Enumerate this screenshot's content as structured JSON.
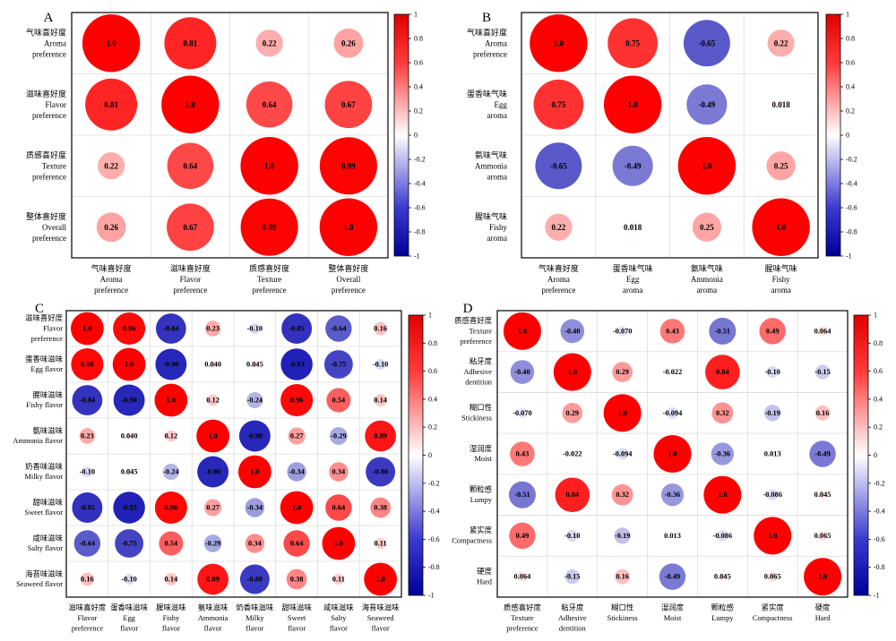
{
  "colors": {
    "positive": "#ff0000",
    "negative": "#0000bb",
    "neutral": "#ffffff",
    "gridline": "#dcdcdc",
    "frame": "#000000"
  },
  "chart_data": [
    {
      "type": "heatmap",
      "panel_label": "A",
      "row_labels": [
        [
          "气味喜好度",
          "Aroma",
          "preference"
        ],
        [
          "滋味喜好度",
          "Flavor",
          "preference"
        ],
        [
          "质感喜好度",
          "Texture",
          "preference"
        ],
        [
          "整体喜好度",
          "Overall",
          "preference"
        ]
      ],
      "col_labels": [
        [
          "气味喜好度",
          "Aroma",
          "preference"
        ],
        [
          "滋味喜好度",
          "Flavor",
          "preference"
        ],
        [
          "质感喜好度",
          "Texture",
          "preference"
        ],
        [
          "整体喜好度",
          "Overall",
          "preference"
        ]
      ],
      "values": [
        [
          1.0,
          0.81,
          0.22,
          0.26
        ],
        [
          0.81,
          1.0,
          0.64,
          0.67
        ],
        [
          0.22,
          0.64,
          1.0,
          0.99
        ],
        [
          0.26,
          0.67,
          0.99,
          1.0
        ]
      ],
      "value_labels": [
        [
          "1.0",
          "0.81",
          "0.22",
          "0.26"
        ],
        [
          "0.81",
          "1.0",
          "0.64",
          "0.67"
        ],
        [
          "0.22",
          "0.64",
          "1.0",
          "0.99"
        ],
        [
          "0.26",
          "0.67",
          "0.99",
          "1.0"
        ]
      ],
      "colorbar": {
        "range": [
          -1,
          1
        ],
        "ticks": [
          "1",
          "0.8",
          "0.6",
          "0.4",
          "0.2",
          "0",
          "-0.2",
          "-0.4",
          "-0.6",
          "-0.8",
          "-1"
        ]
      }
    },
    {
      "type": "heatmap",
      "panel_label": "B",
      "row_labels": [
        [
          "气味喜好度",
          "Aroma",
          "preference"
        ],
        [
          "蛋香味气味",
          "Egg",
          "aroma"
        ],
        [
          "氨味气味",
          "Ammonia",
          "aroma"
        ],
        [
          "腥味气味",
          "Fishy",
          "aroma"
        ]
      ],
      "col_labels": [
        [
          "气味喜好度",
          "Aroma",
          "preference"
        ],
        [
          "蛋香味气味",
          "Egg",
          "aroma"
        ],
        [
          "氨味气味",
          "Ammonia",
          "aroma"
        ],
        [
          "腥味气味",
          "Fishy",
          "aroma"
        ]
      ],
      "values": [
        [
          1.0,
          0.75,
          -0.65,
          0.22
        ],
        [
          0.75,
          1.0,
          -0.49,
          0.018
        ],
        [
          -0.65,
          -0.49,
          1.0,
          0.25
        ],
        [
          0.22,
          0.018,
          0.25,
          1.0
        ]
      ],
      "value_labels": [
        [
          "1.0",
          "0.75",
          "-0.65",
          "0.22"
        ],
        [
          "0.75",
          "1.0",
          "-0.49",
          "0.018"
        ],
        [
          "-0.65",
          "-0.49",
          "1.0",
          "0.25"
        ],
        [
          "0.22",
          "0.018",
          "0.25",
          "1.0"
        ]
      ],
      "colorbar": {
        "range": [
          -1,
          1
        ],
        "ticks": [
          "1",
          "0.8",
          "0.6",
          "0.4",
          "0.2",
          "0",
          "-0.2",
          "-0.4",
          "-0.6",
          "-0.8",
          "-1"
        ]
      }
    },
    {
      "type": "heatmap",
      "panel_label": "C",
      "row_labels": [
        [
          "滋味喜好度",
          "Flavor",
          "preference"
        ],
        [
          "蛋香味滋味",
          "Egg flavor"
        ],
        [
          "腥味滋味",
          "Fishy flavor"
        ],
        [
          "氨味滋味",
          "Ammonia flavor"
        ],
        [
          "奶香味滋味",
          "Milky flavor"
        ],
        [
          "甜味滋味",
          "Sweet flavor"
        ],
        [
          "咸味滋味",
          "Salty flavor"
        ],
        [
          "海苔味滋味",
          "Seaweed flavor"
        ]
      ],
      "col_labels": [
        [
          "滋味喜好度",
          "Flavor",
          "preference"
        ],
        [
          "蛋香味滋味",
          "Egg",
          "flavor"
        ],
        [
          "腥味滋味",
          "Fishy",
          "flavor"
        ],
        [
          "氨味滋味",
          "Ammonia",
          "flavor"
        ],
        [
          "奶香味滋味",
          "Milky",
          "flavor"
        ],
        [
          "甜味滋味",
          "Sweet",
          "flavor"
        ],
        [
          "咸味滋味",
          "Salty",
          "flavor"
        ],
        [
          "海苔味滋味",
          "Seaweed",
          "flavor"
        ]
      ],
      "values": [
        [
          1.0,
          0.96,
          -0.84,
          0.23,
          -0.1,
          -0.85,
          -0.64,
          0.16
        ],
        [
          0.96,
          1.0,
          -0.9,
          0.04,
          0.045,
          -0.93,
          -0.75,
          -0.1
        ],
        [
          -0.84,
          -0.9,
          1.0,
          0.12,
          -0.24,
          0.96,
          0.54,
          0.14
        ],
        [
          0.23,
          0.04,
          0.12,
          1.0,
          -0.9,
          0.27,
          -0.29,
          0.89
        ],
        [
          -0.1,
          0.045,
          -0.24,
          -0.9,
          1.0,
          -0.34,
          0.34,
          -0.8
        ],
        [
          -0.85,
          -0.93,
          0.96,
          0.27,
          -0.34,
          1.0,
          0.64,
          0.38
        ],
        [
          -0.64,
          -0.75,
          0.54,
          -0.29,
          0.34,
          0.64,
          1.0,
          0.11
        ],
        [
          0.16,
          -0.1,
          0.14,
          0.89,
          -0.8,
          0.38,
          0.11,
          1.0
        ]
      ],
      "value_labels": [
        [
          "1.0",
          "0.96",
          "-0.84",
          "0.23",
          "-0.10",
          "-0.85",
          "-0.64",
          "0.16"
        ],
        [
          "0.96",
          "1.0",
          "-0.90",
          "0.040",
          "0.045",
          "-0.93",
          "-0.75",
          "-0.10"
        ],
        [
          "-0.84",
          "-0.90",
          "1.0",
          "0.12",
          "-0.24",
          "0.96",
          "0.54",
          "0.14"
        ],
        [
          "0.23",
          "0.040",
          "0.12",
          "1.0",
          "-0.90",
          "0.27",
          "-0.29",
          "0.89"
        ],
        [
          "-0.10",
          "0.045",
          "-0.24",
          "-0.90",
          "1.0",
          "-0.34",
          "0.34",
          "-0.80"
        ],
        [
          "-0.85",
          "-0.93",
          "0.96",
          "0.27",
          "-0.34",
          "1.0",
          "0.64",
          "0.38"
        ],
        [
          "-0.64",
          "-0.75",
          "0.54",
          "-0.29",
          "0.34",
          "0.64",
          "1.0",
          "0.11"
        ],
        [
          "0.16",
          "-0.10",
          "0.14",
          "0.89",
          "-0.80",
          "0.38",
          "0.11",
          "1.0"
        ]
      ],
      "colorbar": {
        "range": [
          -1,
          1
        ],
        "ticks": [
          "1",
          "0.8",
          "0.6",
          "0.4",
          "0.2",
          "0",
          "-0.2",
          "-0.4",
          "-0.6",
          "-0.8",
          "-1"
        ]
      }
    },
    {
      "type": "heatmap",
      "panel_label": "D",
      "row_labels": [
        [
          "质感喜好度",
          "Texture",
          "preference"
        ],
        [
          "粘牙度",
          "Adhesive",
          "dentition"
        ],
        [
          "糊口性",
          "Stickiness"
        ],
        [
          "湿润度",
          "Moist"
        ],
        [
          "颗粒感",
          "Lumpy"
        ],
        [
          "紧实度",
          "Compactness"
        ],
        [
          "硬度",
          "Hard"
        ]
      ],
      "col_labels": [
        [
          "质感喜好度",
          "Texture",
          "preference"
        ],
        [
          "粘牙度",
          "Adhesive",
          "dentition"
        ],
        [
          "糊口性",
          "Stickiness"
        ],
        [
          "湿润度",
          "Moist"
        ],
        [
          "颗粒感",
          "Lumpy"
        ],
        [
          "紧实度",
          "Compactness"
        ],
        [
          "硬度",
          "Hard"
        ]
      ],
      "values": [
        [
          1.0,
          -0.4,
          -0.07,
          0.43,
          -0.51,
          0.49,
          0.064
        ],
        [
          -0.4,
          1.0,
          0.29,
          -0.022,
          0.84,
          -0.1,
          -0.15
        ],
        [
          -0.07,
          0.29,
          1.0,
          -0.094,
          0.32,
          -0.19,
          0.16
        ],
        [
          0.43,
          -0.022,
          -0.094,
          1.0,
          -0.36,
          0.013,
          -0.49
        ],
        [
          -0.51,
          0.84,
          0.32,
          -0.36,
          1.0,
          -0.086,
          0.045
        ],
        [
          0.49,
          -0.1,
          -0.19,
          0.013,
          -0.086,
          1.0,
          0.065
        ],
        [
          0.064,
          -0.15,
          0.16,
          -0.49,
          0.045,
          0.065,
          1.0
        ]
      ],
      "value_labels": [
        [
          "1.0",
          "-0.40",
          "-0.070",
          "0.43",
          "-0.51",
          "0.49",
          "0.064"
        ],
        [
          "-0.40",
          "1.0",
          "0.29",
          "-0.022",
          "0.84",
          "-0.10",
          "-0.15"
        ],
        [
          "-0.070",
          "0.29",
          "1.0",
          "-0.094",
          "0.32",
          "-0.19",
          "0.16"
        ],
        [
          "0.43",
          "-0.022",
          "-0.094",
          "1.0",
          "-0.36",
          "0.013",
          "-0.49"
        ],
        [
          "-0.51",
          "0.84",
          "0.32",
          "-0.36",
          "1.0",
          "-0.086",
          "0.045"
        ],
        [
          "0.49",
          "-0.10",
          "-0.19",
          "0.013",
          "-0.086",
          "1.0",
          "0.065"
        ],
        [
          "0.064",
          "-0.15",
          "0.16",
          "-0.49",
          "0.045",
          "0.065",
          "1.0"
        ]
      ],
      "colorbar": {
        "range": [
          -1,
          1
        ],
        "ticks": [
          "1",
          "0.8",
          "0.6",
          "0.4",
          "0.2",
          "0",
          "-0.2",
          "-0.4",
          "-0.6",
          "-0.8",
          "-1"
        ]
      }
    }
  ]
}
